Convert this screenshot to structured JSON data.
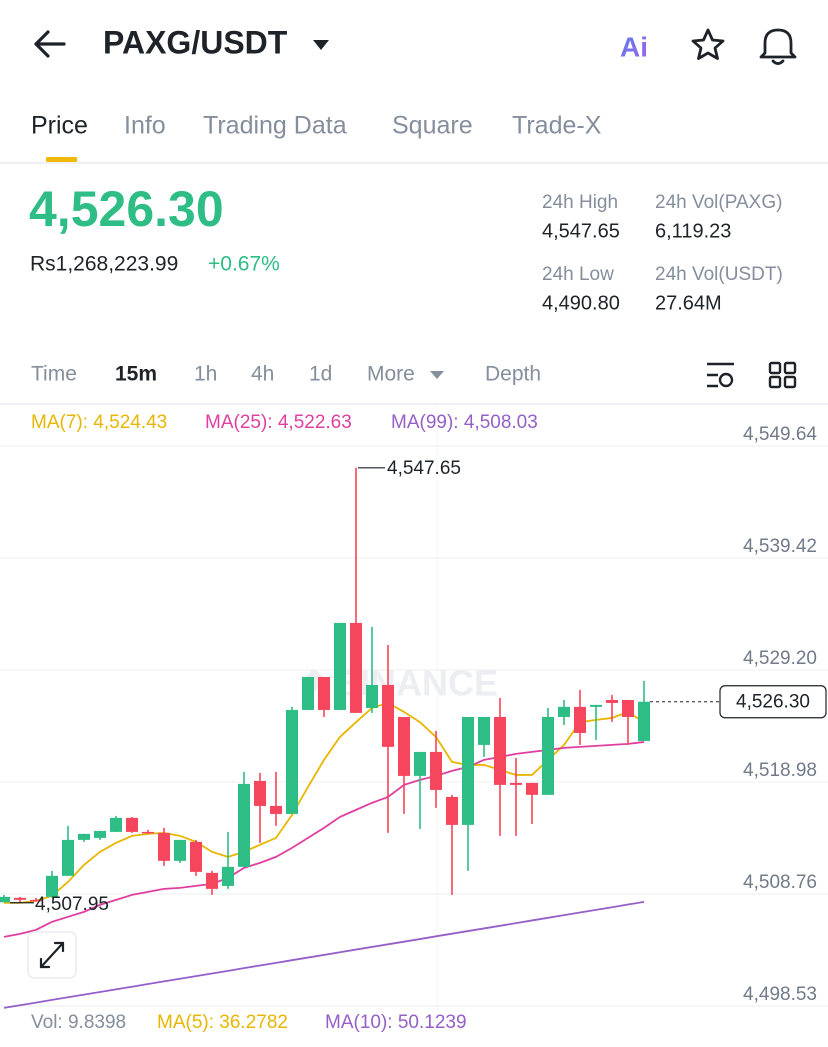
{
  "header": {
    "pair": "PAXG/USDT",
    "ai_badge": "Ai"
  },
  "tabs": [
    "Price",
    "Info",
    "Trading Data",
    "Square",
    "Trade-X"
  ],
  "active_tab": "Price",
  "price": {
    "last": "4,526.30",
    "fiat": "Rs1,268,223.99",
    "change": "+0.67%"
  },
  "stats": [
    {
      "label": "24h High",
      "value": "4,547.65"
    },
    {
      "label": "24h Vol(PAXG)",
      "value": "6,119.23"
    },
    {
      "label": "24h Low",
      "value": "4,490.80"
    },
    {
      "label": "24h Vol(USDT)",
      "value": "27.64M"
    }
  ],
  "intervals": [
    "Time",
    "15m",
    "1h",
    "4h",
    "1d",
    "More",
    "Depth"
  ],
  "active_interval": "15m",
  "volume_legend": [
    {
      "label": "Vol: 9.8398",
      "color": "#848e9c"
    },
    {
      "label": "MA(5): 36.2782",
      "color": "#e8b600"
    },
    {
      "label": "MA(10): 50.1239",
      "color": "#9460c8"
    }
  ],
  "chart_data": {
    "type": "candlestick",
    "up_color": "#2ebd85",
    "down_color": "#f6465d",
    "watermark": "BINANCE",
    "grid": true,
    "ylim": [
      4498.53,
      4549.64
    ],
    "yticks": [
      {
        "value": 4549.64,
        "label": "4,549.64"
      },
      {
        "value": 4539.42,
        "label": "4,539.42"
      },
      {
        "value": 4529.2,
        "label": "4,529.20"
      },
      {
        "value": 4518.98,
        "label": "4,518.98"
      },
      {
        "value": 4508.76,
        "label": "4,508.76"
      },
      {
        "value": 4498.53,
        "label": "4,498.53"
      }
    ],
    "candles": [
      {
        "open": 4508.0,
        "high": 4508.67,
        "low": 4508.0,
        "close": 4508.49
      },
      {
        "open": 4508.4,
        "high": 4508.49,
        "low": 4507.95,
        "close": 4508.22
      },
      {
        "open": 4508.22,
        "high": 4508.4,
        "low": 4508.05,
        "close": 4508.13
      },
      {
        "open": 4508.49,
        "high": 4510.86,
        "low": 4508.4,
        "close": 4510.41
      },
      {
        "open": 4510.41,
        "high": 4514.97,
        "low": 4510.41,
        "close": 4513.69
      },
      {
        "open": 4513.69,
        "high": 4514.24,
        "low": 4513.51,
        "close": 4514.24
      },
      {
        "open": 4513.87,
        "high": 4514.51,
        "low": 4513.69,
        "close": 4514.51
      },
      {
        "open": 4514.42,
        "high": 4515.88,
        "low": 4514.42,
        "close": 4515.7
      },
      {
        "open": 4515.7,
        "high": 4515.79,
        "low": 4514.33,
        "close": 4514.42
      },
      {
        "open": 4514.42,
        "high": 4514.6,
        "low": 4514.24,
        "close": 4514.33
      },
      {
        "open": 4514.33,
        "high": 4514.79,
        "low": 4511.32,
        "close": 4511.78
      },
      {
        "open": 4511.78,
        "high": 4513.69,
        "low": 4511.6,
        "close": 4513.69
      },
      {
        "open": 4513.51,
        "high": 4513.69,
        "low": 4510.41,
        "close": 4510.77
      },
      {
        "open": 4510.68,
        "high": 4510.86,
        "low": 4508.67,
        "close": 4509.22
      },
      {
        "open": 4509.49,
        "high": 4514.42,
        "low": 4509.22,
        "close": 4511.23
      },
      {
        "open": 4511.23,
        "high": 4519.9,
        "low": 4511.23,
        "close": 4518.8
      },
      {
        "open": 4519.07,
        "high": 4519.8,
        "low": 4513.42,
        "close": 4516.79
      },
      {
        "open": 4516.79,
        "high": 4519.9,
        "low": 4514.97,
        "close": 4516.06
      },
      {
        "open": 4516.06,
        "high": 4525.83,
        "low": 4516.06,
        "close": 4525.55
      },
      {
        "open": 4525.55,
        "high": 4528.56,
        "low": 4525.55,
        "close": 4528.56
      },
      {
        "open": 4528.56,
        "high": 4528.56,
        "low": 4524.91,
        "close": 4525.55
      },
      {
        "open": 4525.55,
        "high": 4533.49,
        "low": 4525.55,
        "close": 4533.49
      },
      {
        "open": 4533.49,
        "high": 4547.65,
        "low": 4525.28,
        "close": 4525.28
      },
      {
        "open": 4525.73,
        "high": 4533.13,
        "low": 4525.28,
        "close": 4527.83
      },
      {
        "open": 4527.83,
        "high": 4531.48,
        "low": 4514.33,
        "close": 4522.18
      },
      {
        "open": 4524.91,
        "high": 4524.91,
        "low": 4516.06,
        "close": 4519.53
      },
      {
        "open": 4519.53,
        "high": 4521.72,
        "low": 4514.69,
        "close": 4521.72
      },
      {
        "open": 4521.72,
        "high": 4523.64,
        "low": 4516.61,
        "close": 4518.25
      },
      {
        "open": 4517.61,
        "high": 4517.8,
        "low": 4508.67,
        "close": 4515.06
      },
      {
        "open": 4515.06,
        "high": 4524.91,
        "low": 4510.86,
        "close": 4524.91
      },
      {
        "open": 4522.36,
        "high": 4524.91,
        "low": 4521.26,
        "close": 4524.91
      },
      {
        "open": 4524.91,
        "high": 4526.65,
        "low": 4514.06,
        "close": 4518.71
      },
      {
        "open": 4518.89,
        "high": 4521.17,
        "low": 4514.06,
        "close": 4518.71
      },
      {
        "open": 4518.89,
        "high": 4518.89,
        "low": 4515.15,
        "close": 4517.8
      },
      {
        "open": 4517.8,
        "high": 4525.73,
        "low": 4517.8,
        "close": 4524.91
      },
      {
        "open": 4524.91,
        "high": 4526.46,
        "low": 4524.18,
        "close": 4525.83
      },
      {
        "open": 4525.83,
        "high": 4527.38,
        "low": 4522.36,
        "close": 4523.45
      },
      {
        "open": 4525.83,
        "high": 4526.01,
        "low": 4522.82,
        "close": 4526.01
      },
      {
        "open": 4526.46,
        "high": 4526.92,
        "low": 4524.46,
        "close": 4526.19
      },
      {
        "open": 4526.46,
        "high": 4526.46,
        "low": 4522.36,
        "close": 4524.91
      },
      {
        "open": 4522.72,
        "high": 4528.2,
        "low": 4522.72,
        "close": 4526.3
      }
    ],
    "series": [
      {
        "name": "MA(7): 4,524.43",
        "color": "#e8b600",
        "values": [
          4507.94,
          4507.94,
          4508.13,
          4508.58,
          4509.86,
          4511.41,
          4512.6,
          4513.42,
          4514.06,
          4514.24,
          4514.33,
          4514.06,
          4513.51,
          4512.6,
          4512.14,
          4512.6,
          4513.24,
          4513.87,
          4515.97,
          4518.52,
          4520.99,
          4523.09,
          4524.43,
          4525.73,
          4526.19,
          4525.37,
          4524.43,
          4523.09,
          4520.81,
          4520.53,
          4520.53,
          4520.08,
          4519.62,
          4519.62,
          4520.99,
          4522.36,
          4524.43,
          4524.64,
          4524.82,
          4525.37,
          4524.43
        ]
      },
      {
        "name": "MA(25): 4,522.63",
        "color": "#df3fa0",
        "values": [
          4504.84,
          4505.11,
          4505.48,
          4506.21,
          4506.67,
          4507.12,
          4507.76,
          4508.22,
          4508.67,
          4508.95,
          4509.22,
          4509.31,
          4509.49,
          4509.68,
          4510.22,
          4511.14,
          4511.59,
          4512.14,
          4512.96,
          4513.87,
          4514.79,
          4515.79,
          4516.43,
          4517.07,
          4517.61,
          4518.71,
          4519.17,
          4519.53,
          4519.99,
          4520.35,
          4520.99,
          4521.26,
          4521.54,
          4521.72,
          4521.9,
          4522.09,
          4522.18,
          4522.27,
          4522.36,
          4522.45,
          4522.63
        ]
      },
      {
        "name": "MA(99): 4,508.03",
        "color": "#9460c8",
        "values": [
          4498.36,
          4498.6,
          4498.84,
          4499.09,
          4499.33,
          4499.57,
          4499.81,
          4500.05,
          4500.29,
          4500.54,
          4500.78,
          4501.02,
          4501.26,
          4501.5,
          4501.74,
          4501.99,
          4502.23,
          4502.47,
          4502.71,
          4502.95,
          4503.19,
          4503.44,
          4503.68,
          4503.92,
          4504.16,
          4504.4,
          4504.64,
          4504.89,
          4505.13,
          4505.37,
          4505.61,
          4505.85,
          4506.09,
          4506.34,
          4506.58,
          4506.82,
          4507.06,
          4507.3,
          4507.54,
          4507.79,
          4508.03
        ]
      }
    ],
    "annotations": [
      {
        "value": 4547.65,
        "label": "4,547.65"
      },
      {
        "value": 4507.95,
        "label": "4,507.95"
      }
    ],
    "last_price": {
      "value": 4526.3,
      "label": "4,526.30"
    }
  }
}
